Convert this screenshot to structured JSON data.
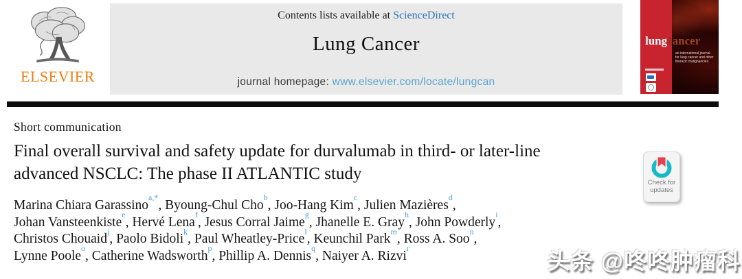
{
  "publisher": {
    "name": "ELSEVIER"
  },
  "banner": {
    "contents_prefix": "Contents lists available at ",
    "sciencedirect_link": "ScienceDirect",
    "journal_title": "Lung Cancer",
    "homepage_label": "journal homepage: ",
    "homepage_url": "www.elsevier.com/locate/lungcan"
  },
  "cover": {
    "brand_lung": "lung",
    "brand_cancer": "cancer",
    "subtitle": "an international journal for lung cancer and other thoracic malignancies"
  },
  "article": {
    "type_label": "Short communication",
    "title_line1": "Final overall survival and safety update for durvalumab in third- or later-line",
    "title_line2": "advanced NSCLC: The phase II ATLANTIC study",
    "author_lines": [
      [
        {
          "name": "Marina Chiara Garassino",
          "sup": "a,*"
        },
        {
          "name": "Byoung-Chul Cho",
          "sup": "b"
        },
        {
          "name": "Joo-Hang Kim",
          "sup": "c"
        },
        {
          "name": "Julien Mazières",
          "sup": "d"
        }
      ],
      [
        {
          "name": "Johan Vansteenkiste",
          "sup": "e"
        },
        {
          "name": "Hervé Lena",
          "sup": "f"
        },
        {
          "name": "Jesus Corral Jaime",
          "sup": "g"
        },
        {
          "name": "Jhanelle E. Gray",
          "sup": "h"
        },
        {
          "name": "John Powderly",
          "sup": "i"
        }
      ],
      [
        {
          "name": "Christos Chouaid",
          "sup": "j"
        },
        {
          "name": "Paolo Bidoli",
          "sup": "k"
        },
        {
          "name": "Paul Wheatley-Price",
          "sup": "l"
        },
        {
          "name": "Keunchil Park",
          "sup": "m"
        },
        {
          "name": "Ross A. Soo",
          "sup": "n"
        }
      ],
      [
        {
          "name": "Lynne Poole",
          "sup": "o"
        },
        {
          "name": "Catherine Wadsworth",
          "sup": "p"
        },
        {
          "name": "Phillip A. Dennis",
          "sup": "q"
        },
        {
          "name": "Naiyer A. Rizvi",
          "sup": "r"
        }
      ]
    ]
  },
  "badge": {
    "label_line1": "Check for",
    "label_line2": "updates"
  },
  "watermark": {
    "text": "头条 @咚咚肿瘤科"
  },
  "colors": {
    "banner_bg": "#e9e9e9",
    "sciencedirect_blue": "#2d72b8",
    "homepage_url_blue": "#57a5cd",
    "elsevier_orange": "#ee7d11",
    "affiliation_sup_blue": "#4d9fd6",
    "cover_stripe_red": "#c72430",
    "cover_cancer_orange": "#a8401f",
    "rule_black": "#0c0c0c",
    "crossmark_teal": "#17b8c8",
    "crossmark_red": "#e8404a"
  }
}
